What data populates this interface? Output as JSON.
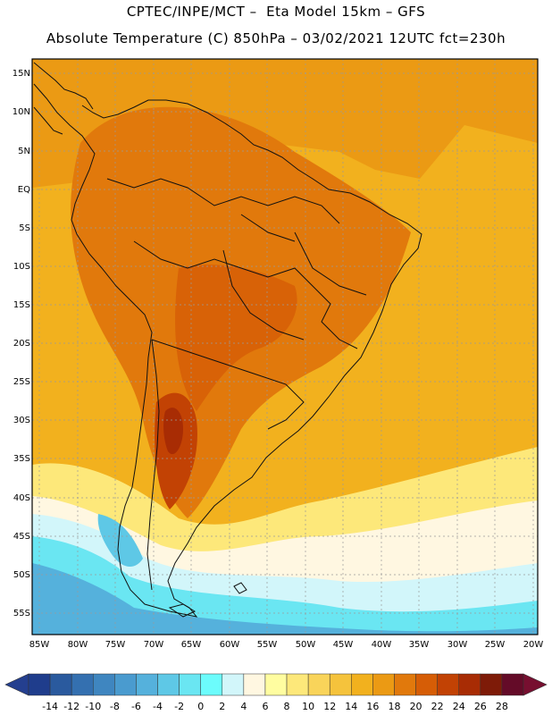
{
  "title_line1": "CPTEC/INPE/MCT –  Eta Model 15km – GFS",
  "title_line2": "Absolute Temperature (C) 850hPa – 03/02/2021 12UTC fct=230h",
  "map": {
    "lat_ticks": [
      "15N",
      "10N",
      "5N",
      "EQ",
      "5S",
      "10S",
      "15S",
      "20S",
      "25S",
      "30S",
      "35S",
      "40S",
      "45S",
      "50S",
      "55S"
    ],
    "lon_ticks": [
      "85W",
      "80W",
      "75W",
      "70W",
      "65W",
      "60W",
      "55W",
      "50W",
      "45W",
      "40W",
      "35W",
      "30W",
      "25W",
      "20W"
    ]
  },
  "colorbar": {
    "labels": [
      "-14",
      "-12",
      "-10",
      "-8",
      "-6",
      "-4",
      "-2",
      "0",
      "2",
      "4",
      "6",
      "8",
      "10",
      "12",
      "14",
      "16",
      "18",
      "20",
      "22",
      "24",
      "26",
      "28"
    ],
    "colors": [
      "#1f3d8c",
      "#2a5a9e",
      "#3470b0",
      "#3f86c0",
      "#4a9bcf",
      "#55b1dc",
      "#5ec8e6",
      "#6ae6f2",
      "#6cfcfc",
      "#d2f6fa",
      "#fff7e1",
      "#fffda0",
      "#fde87a",
      "#f9d45a",
      "#f5c33c",
      "#f2b11e",
      "#eb9a14",
      "#e1790c",
      "#d65d06",
      "#c24204",
      "#a82c04",
      "#7e1b08",
      "#640b28"
    ],
    "under_color": "#243f8f",
    "over_color": "#770f30"
  }
}
